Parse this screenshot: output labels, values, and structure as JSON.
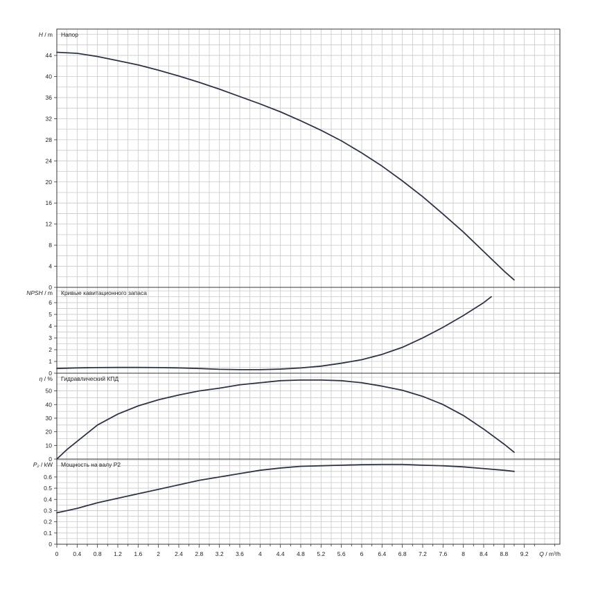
{
  "chart_data": {
    "type": "line",
    "x_axis": {
      "label_var": "Q",
      "label_unit": " / m³/h",
      "range": [
        0,
        9.9
      ],
      "ticks": [
        0,
        0.4,
        0.8,
        1.2,
        1.6,
        2,
        2.4,
        2.8,
        3.2,
        3.6,
        4,
        4.4,
        4.8,
        5.2,
        5.6,
        6,
        6.4,
        6.8,
        7.2,
        7.6,
        8,
        8.4,
        8.8,
        9.2
      ],
      "tick_labels": [
        "0",
        "0.4",
        "0.8",
        "1.2",
        "1.6",
        "2",
        "2.4",
        "2.8",
        "3.2",
        "3.6",
        "4",
        "4.4",
        "4.8",
        "5.2",
        "5.6",
        "6",
        "6.4",
        "6.8",
        "7.2",
        "7.6",
        "8",
        "8.4",
        "8.8",
        "9.2"
      ],
      "grid": true
    },
    "panels": [
      {
        "id": "head",
        "title": "Напор",
        "ylabel_var": "H",
        "ylabel_unit": " / m",
        "ylim": [
          0,
          49
        ],
        "yticks": [
          0,
          4,
          8,
          12,
          16,
          20,
          24,
          28,
          32,
          36,
          40,
          44
        ],
        "series": [
          {
            "x": [
              0,
              0.4,
              0.8,
              1.2,
              1.6,
              2,
              2.4,
              2.8,
              3.2,
              3.6,
              4,
              4.4,
              4.8,
              5.2,
              5.6,
              6,
              6.4,
              6.8,
              7.2,
              7.6,
              8,
              8.4,
              8.8,
              9.0
            ],
            "y": [
              44.6,
              44.4,
              43.8,
              43.0,
              42.2,
              41.2,
              40.1,
              38.9,
              37.6,
              36.2,
              34.8,
              33.3,
              31.6,
              29.8,
              27.8,
              25.5,
              23.0,
              20.2,
              17.2,
              13.9,
              10.5,
              6.8,
              3.1,
              1.4
            ]
          }
        ]
      },
      {
        "id": "npsh",
        "title": "Кривые кавитационного запаса",
        "ylabel_var": "NPSH",
        "ylabel_unit": " / m",
        "ylim": [
          0,
          7.3
        ],
        "yticks": [
          0,
          1,
          2,
          3,
          4,
          5,
          6
        ],
        "series": [
          {
            "x": [
              0,
              0.4,
              0.8,
              1.2,
              1.6,
              2,
              2.4,
              2.8,
              3.2,
              3.6,
              4,
              4.4,
              4.8,
              5.2,
              5.6,
              6,
              6.4,
              6.8,
              7.2,
              7.6,
              8,
              8.4,
              8.55
            ],
            "y": [
              0.4,
              0.45,
              0.48,
              0.49,
              0.49,
              0.48,
              0.45,
              0.4,
              0.33,
              0.3,
              0.3,
              0.35,
              0.45,
              0.6,
              0.85,
              1.15,
              1.6,
              2.2,
              3.0,
              3.9,
              4.9,
              6.0,
              6.5
            ]
          }
        ]
      },
      {
        "id": "efficiency",
        "title": "Гидравлический КПД",
        "ylabel_var": "η",
        "ylabel_unit": " / %",
        "ylim": [
          0,
          63
        ],
        "yticks": [
          0,
          10,
          20,
          30,
          40,
          50
        ],
        "series": [
          {
            "x": [
              0,
              0.2,
              0.4,
              0.8,
              1.2,
              1.6,
              2,
              2.4,
              2.8,
              3.2,
              3.6,
              4,
              4.4,
              4.8,
              5.2,
              5.6,
              6,
              6.4,
              6.8,
              7.2,
              7.6,
              8,
              8.4,
              8.8,
              9.0
            ],
            "y": [
              0,
              7,
              13,
              25,
              33,
              39,
              43.5,
              47,
              50,
              52,
              54.5,
              56,
              57.5,
              58,
              58,
              57.5,
              56,
              53.5,
              50.5,
              46,
              40,
              32,
              22,
              11,
              5
            ]
          }
        ]
      },
      {
        "id": "power",
        "title": "Мощность на валу P2",
        "ylabel_var": "P₂",
        "ylabel_unit": " / kW",
        "ylim": [
          0,
          0.76
        ],
        "yticks": [
          0,
          0.1,
          0.2,
          0.3,
          0.4,
          0.5,
          0.6
        ],
        "ytick_labels": [
          "0",
          "0.1",
          "0.2",
          "0.3",
          "0.4",
          "0.5",
          "0.6"
        ],
        "series": [
          {
            "x": [
              0,
              0.4,
              0.8,
              1.2,
              1.6,
              2,
              2.4,
              2.8,
              3.2,
              3.6,
              4,
              4.4,
              4.8,
              5.2,
              5.6,
              6,
              6.4,
              6.8,
              7.2,
              7.6,
              8,
              8.4,
              8.8,
              9.0
            ],
            "y": [
              0.28,
              0.32,
              0.37,
              0.41,
              0.45,
              0.49,
              0.53,
              0.57,
              0.6,
              0.63,
              0.66,
              0.68,
              0.695,
              0.7,
              0.705,
              0.71,
              0.712,
              0.712,
              0.705,
              0.7,
              0.69,
              0.675,
              0.66,
              0.65
            ]
          }
        ]
      }
    ],
    "colors": {
      "curve": "#2c3347",
      "grid": "#c8c8c8",
      "frame": "#333333"
    }
  }
}
